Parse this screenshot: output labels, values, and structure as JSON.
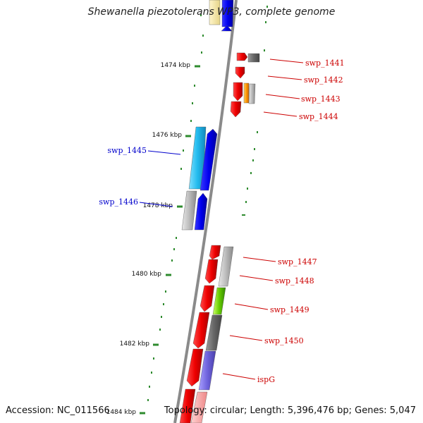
{
  "header": {
    "title": "Shewanella piezotolerans WP3, complete genome"
  },
  "footer": {
    "accession": "Accession: NC_011566",
    "topology": "Topology: circular; Length: 5,396,476 bp; Genes: 5,047"
  },
  "colors": {
    "backbone": "#8a8a8a",
    "tick": "#2e8b2e",
    "strand_plus_label": "#cc0000",
    "strand_minus_label": "#0000cc"
  },
  "ticks": [
    "1474 kbp",
    "1476 kbp",
    "1478 kbp",
    "1480 kbp",
    "1482 kbp",
    "1484 kbp"
  ],
  "gene_labels": [
    "swp_1441",
    "swp_1442",
    "swp_1443",
    "swp_1444",
    "swp_1445",
    "swp_1446",
    "swp_1447",
    "swp_1448",
    "swp_1449",
    "swp_1450",
    "ispG"
  ]
}
